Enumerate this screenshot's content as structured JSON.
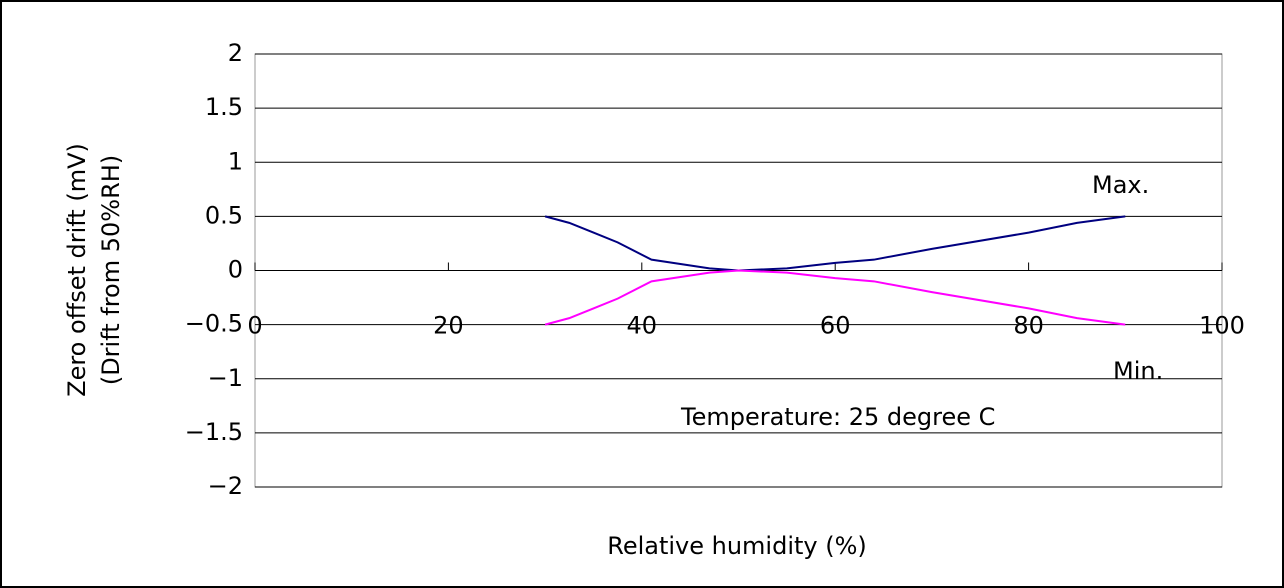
{
  "chart_data": {
    "type": "line",
    "y_label": [
      "Zero offset drift (mV)",
      "(Drift from 50%RH)"
    ],
    "x_label": "Relative humidity (%)",
    "annotations": [
      "Max.",
      "Min.",
      "Temperature: 25 degree C"
    ],
    "xlim": [
      0,
      100
    ],
    "xticks": [
      0,
      20,
      40,
      60,
      80,
      100
    ],
    "ylim": [
      -2,
      2
    ],
    "yticks": [
      {
        "value": -2,
        "label": "−2"
      },
      {
        "value": -1.5,
        "label": "−1.5"
      },
      {
        "value": -1,
        "label": "−1"
      },
      {
        "value": -0.5,
        "label": "−0.5"
      },
      0,
      0.5,
      1,
      1.5,
      2
    ],
    "grid": true,
    "series": [
      {
        "name": "Max.",
        "color": "#000080",
        "x": [
          30,
          32.5,
          35,
          37.5,
          41,
          47,
          50,
          55,
          60,
          64,
          70,
          80,
          85,
          90
        ],
        "values": [
          0.5,
          0.44,
          0.35,
          0.26,
          0.1,
          0.02,
          0,
          0.02,
          0.07,
          0.1,
          0.2,
          0.35,
          0.44,
          0.5
        ]
      },
      {
        "name": "Min.",
        "color": "#ff00ff",
        "x": [
          30,
          32.5,
          35,
          37.5,
          41,
          47,
          50,
          55,
          60,
          64,
          70,
          80,
          85,
          90
        ],
        "values": [
          -0.5,
          -0.44,
          -0.35,
          -0.26,
          -0.1,
          -0.02,
          0,
          -0.02,
          -0.07,
          -0.1,
          -0.2,
          -0.35,
          -0.44,
          -0.5
        ]
      }
    ]
  }
}
